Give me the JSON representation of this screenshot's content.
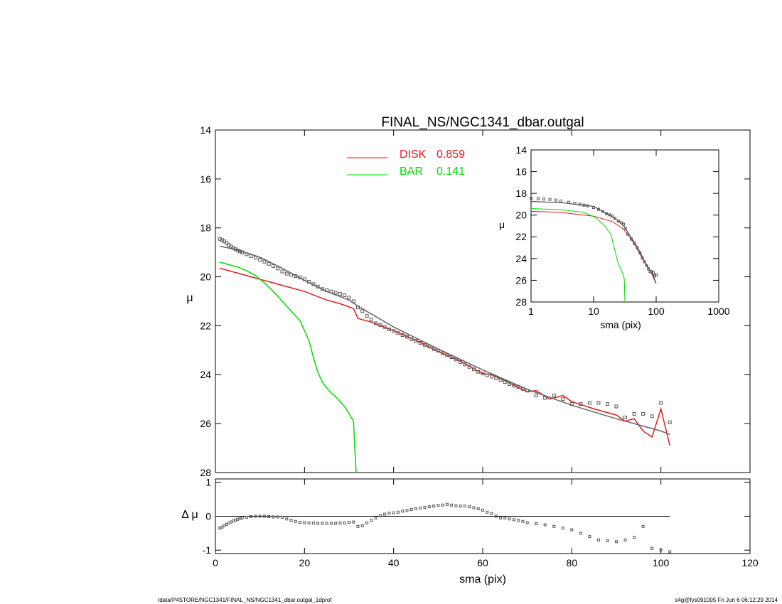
{
  "page": {
    "footer_left": "/data/P4STORE/NGC1341/FINAL_NS/NGC1341_dbar.outgal_1dprof",
    "footer_right": "s4g@fys091005  Fri Jun  6 06:12:29 2014"
  },
  "chart_data": [
    {
      "id": "main",
      "type": "scatter",
      "title": "FINAL_NS/NGC1341_dbar.outgal",
      "xlabel": "sma (pix)",
      "ylabel": "μ",
      "xlim": [
        0,
        120
      ],
      "ylim": [
        28,
        14
      ],
      "xticks": [
        0,
        20,
        40,
        60,
        80,
        100,
        120
      ],
      "yticks": [
        14,
        16,
        18,
        20,
        22,
        24,
        26,
        28
      ],
      "legend": [
        {
          "label": "DISK",
          "value": "0.859",
          "color": "#e41a1c"
        },
        {
          "label": "BAR",
          "value": "0.141",
          "color": "#00dd00"
        }
      ],
      "series": [
        {
          "name": "DISK",
          "color": "#e41a1c",
          "x": [
            1,
            5,
            10,
            15,
            20,
            25,
            28,
            31,
            32,
            35,
            40,
            45,
            50,
            55,
            60,
            62,
            65,
            70,
            72,
            75,
            78,
            80,
            85,
            90,
            92,
            94,
            96,
            98,
            100,
            102
          ],
          "y": [
            19.65,
            19.85,
            20.1,
            20.35,
            20.6,
            20.95,
            21.1,
            21.3,
            21.7,
            21.85,
            22.2,
            22.6,
            23.05,
            23.45,
            23.95,
            24.0,
            24.25,
            24.7,
            24.65,
            25.0,
            24.85,
            25.1,
            25.4,
            25.65,
            25.9,
            25.8,
            26.3,
            26.55,
            25.4,
            26.9
          ]
        },
        {
          "name": "BAR",
          "color": "#00dd00",
          "x": [
            1,
            3,
            5,
            7,
            9,
            11,
            13,
            15,
            17,
            19,
            21,
            22,
            23,
            24,
            25,
            26,
            27,
            28,
            29,
            30,
            31,
            31.2,
            31.4,
            31.6
          ],
          "y": [
            19.4,
            19.5,
            19.6,
            19.75,
            19.95,
            20.25,
            20.6,
            21.0,
            21.4,
            21.8,
            22.6,
            23.3,
            23.9,
            24.3,
            24.55,
            24.75,
            24.9,
            25.1,
            25.3,
            25.6,
            25.9,
            26.7,
            27.4,
            28.0
          ]
        },
        {
          "name": "",
          "color": "#666666",
          "x": [
            1,
            5,
            10,
            15,
            20,
            25,
            30,
            32,
            40,
            50,
            60,
            70,
            80,
            90,
            100,
            102
          ],
          "y": [
            18.75,
            18.9,
            19.2,
            19.65,
            20.15,
            20.6,
            20.95,
            21.2,
            22.05,
            22.95,
            23.8,
            24.6,
            25.25,
            25.8,
            26.3,
            26.45
          ]
        }
      ],
      "points": {
        "x": [
          1,
          1.5,
          2,
          2.5,
          3,
          3.5,
          4,
          4.5,
          5,
          5.5,
          6,
          7,
          8,
          9,
          10,
          11,
          12,
          13,
          14,
          15,
          16,
          17,
          18,
          19,
          20,
          21,
          22,
          23,
          24,
          25,
          26,
          27,
          28,
          29,
          30,
          31,
          32,
          33,
          34,
          35,
          36,
          37,
          38,
          39,
          40,
          41,
          42,
          43,
          44,
          45,
          46,
          47,
          48,
          49,
          50,
          51,
          52,
          53,
          54,
          55,
          56,
          57,
          58,
          59,
          60,
          61,
          62,
          63,
          64,
          65,
          66,
          67,
          68,
          69,
          70,
          72,
          74,
          76,
          78,
          80,
          82,
          84,
          86,
          88,
          90,
          92,
          94,
          96,
          98,
          100,
          102
        ],
        "y": [
          18.45,
          18.5,
          18.55,
          18.62,
          18.7,
          18.76,
          18.82,
          18.87,
          18.92,
          18.96,
          19.0,
          19.08,
          19.15,
          19.22,
          19.3,
          19.38,
          19.47,
          19.56,
          19.66,
          19.78,
          19.87,
          19.92,
          19.97,
          20.02,
          20.1,
          20.2,
          20.3,
          20.4,
          20.5,
          20.55,
          20.6,
          20.65,
          20.7,
          20.75,
          20.85,
          21.0,
          21.25,
          21.4,
          21.6,
          21.75,
          21.9,
          21.97,
          22.05,
          22.15,
          22.22,
          22.3,
          22.38,
          22.45,
          22.55,
          22.62,
          22.7,
          22.78,
          22.85,
          22.95,
          23.02,
          23.12,
          23.2,
          23.28,
          23.38,
          23.48,
          23.58,
          23.68,
          23.78,
          23.88,
          23.95,
          24.02,
          24.08,
          24.15,
          24.22,
          24.3,
          24.38,
          24.45,
          24.5,
          24.58,
          24.65,
          24.85,
          24.95,
          24.85,
          25.0,
          25.2,
          25.2,
          25.15,
          25.15,
          25.2,
          25.3,
          25.75,
          25.6,
          25.6,
          25.7,
          25.15,
          25.95
        ]
      }
    },
    {
      "id": "inset",
      "type": "scatter",
      "xlabel": "sma (pix)",
      "ylabel": "μ",
      "xscale": "log",
      "xlim": [
        1,
        1000
      ],
      "ylim": [
        28,
        14
      ],
      "xticks": [
        1,
        10,
        100,
        1000
      ],
      "yticks": [
        14,
        16,
        18,
        20,
        22,
        24,
        26,
        28
      ],
      "series": [
        {
          "name": "DISK",
          "color": "#e41a1c",
          "x": [
            1,
            3,
            10,
            20,
            30,
            40,
            60,
            80,
            100
          ],
          "y": [
            19.65,
            19.75,
            20.1,
            20.6,
            21.3,
            22.2,
            23.95,
            25.1,
            26.3
          ]
        },
        {
          "name": "BAR",
          "color": "#00dd00",
          "x": [
            1,
            3,
            7,
            11,
            15,
            19,
            22,
            25,
            28,
            30,
            31,
            31.6
          ],
          "y": [
            19.4,
            19.5,
            19.75,
            20.25,
            21.0,
            21.8,
            23.3,
            24.55,
            25.1,
            25.6,
            25.9,
            28.0
          ]
        },
        {
          "name": "",
          "color": "#333333",
          "x": [
            1,
            3,
            10,
            20,
            30,
            50,
            70,
            90,
            100
          ],
          "y": [
            18.75,
            18.85,
            19.2,
            20.15,
            20.95,
            22.95,
            24.6,
            25.6,
            26.3
          ]
        }
      ],
      "points": {
        "x": [
          1,
          1.3,
          1.6,
          2,
          2.5,
          3,
          4,
          5,
          6,
          7,
          8,
          10,
          12,
          14,
          16,
          18,
          20,
          22,
          25,
          28,
          30,
          32,
          35,
          40,
          45,
          50,
          55,
          60,
          65,
          70,
          75,
          80,
          85,
          90,
          95,
          100
        ],
        "y": [
          18.45,
          18.48,
          18.52,
          18.55,
          18.62,
          18.7,
          18.82,
          18.92,
          19.0,
          19.08,
          19.15,
          19.3,
          19.47,
          19.66,
          19.87,
          19.97,
          20.1,
          20.3,
          20.55,
          20.7,
          20.85,
          21.25,
          21.75,
          22.22,
          22.62,
          23.02,
          23.48,
          23.95,
          24.3,
          24.65,
          24.95,
          25.2,
          25.2,
          25.3,
          25.6,
          25.5
        ]
      }
    },
    {
      "id": "residual",
      "type": "scatter",
      "xlabel": "sma (pix)",
      "ylabel": "Δ μ",
      "xlim": [
        0,
        120
      ],
      "ylim": [
        -1.1,
        1.1
      ],
      "xticks": [
        0,
        20,
        40,
        60,
        80,
        100,
        120
      ],
      "yticks": [
        -1,
        0,
        1
      ],
      "zero_line": [
        0,
        102
      ],
      "points": {
        "x": [
          1,
          1.5,
          2,
          2.5,
          3,
          3.5,
          4,
          4.5,
          5,
          5.5,
          6,
          7,
          8,
          9,
          10,
          11,
          12,
          13,
          14,
          15,
          16,
          17,
          18,
          19,
          20,
          21,
          22,
          23,
          24,
          25,
          26,
          27,
          28,
          29,
          30,
          31,
          32,
          33,
          34,
          35,
          36,
          37,
          38,
          39,
          40,
          41,
          42,
          43,
          44,
          45,
          46,
          47,
          48,
          49,
          50,
          51,
          52,
          53,
          54,
          55,
          56,
          57,
          58,
          59,
          60,
          61,
          62,
          63,
          64,
          65,
          66,
          67,
          68,
          69,
          70,
          72,
          74,
          76,
          78,
          80,
          82,
          84,
          86,
          88,
          90,
          92,
          94,
          96,
          98,
          100,
          102
        ],
        "y": [
          -0.35,
          -0.32,
          -0.28,
          -0.24,
          -0.2,
          -0.17,
          -0.14,
          -0.11,
          -0.09,
          -0.07,
          -0.05,
          -0.03,
          -0.01,
          0.0,
          0.0,
          0.0,
          -0.01,
          -0.02,
          -0.02,
          -0.03,
          -0.08,
          -0.12,
          -0.15,
          -0.18,
          -0.19,
          -0.2,
          -0.2,
          -0.21,
          -0.21,
          -0.21,
          -0.21,
          -0.21,
          -0.2,
          -0.2,
          -0.18,
          -0.17,
          -0.3,
          -0.28,
          -0.2,
          -0.12,
          -0.05,
          0.02,
          0.06,
          0.09,
          0.1,
          0.12,
          0.15,
          0.17,
          0.2,
          0.22,
          0.24,
          0.26,
          0.28,
          0.3,
          0.32,
          0.33,
          0.35,
          0.33,
          0.31,
          0.3,
          0.3,
          0.28,
          0.25,
          0.22,
          0.18,
          0.12,
          0.08,
          0.0,
          -0.05,
          -0.05,
          -0.08,
          -0.1,
          -0.12,
          -0.15,
          -0.19,
          -0.22,
          -0.25,
          -0.3,
          -0.35,
          -0.4,
          -0.5,
          -0.6,
          -0.7,
          -0.72,
          -0.75,
          -0.7,
          -0.62,
          -0.3,
          -0.95,
          -1.0,
          -1.05
        ]
      }
    }
  ]
}
